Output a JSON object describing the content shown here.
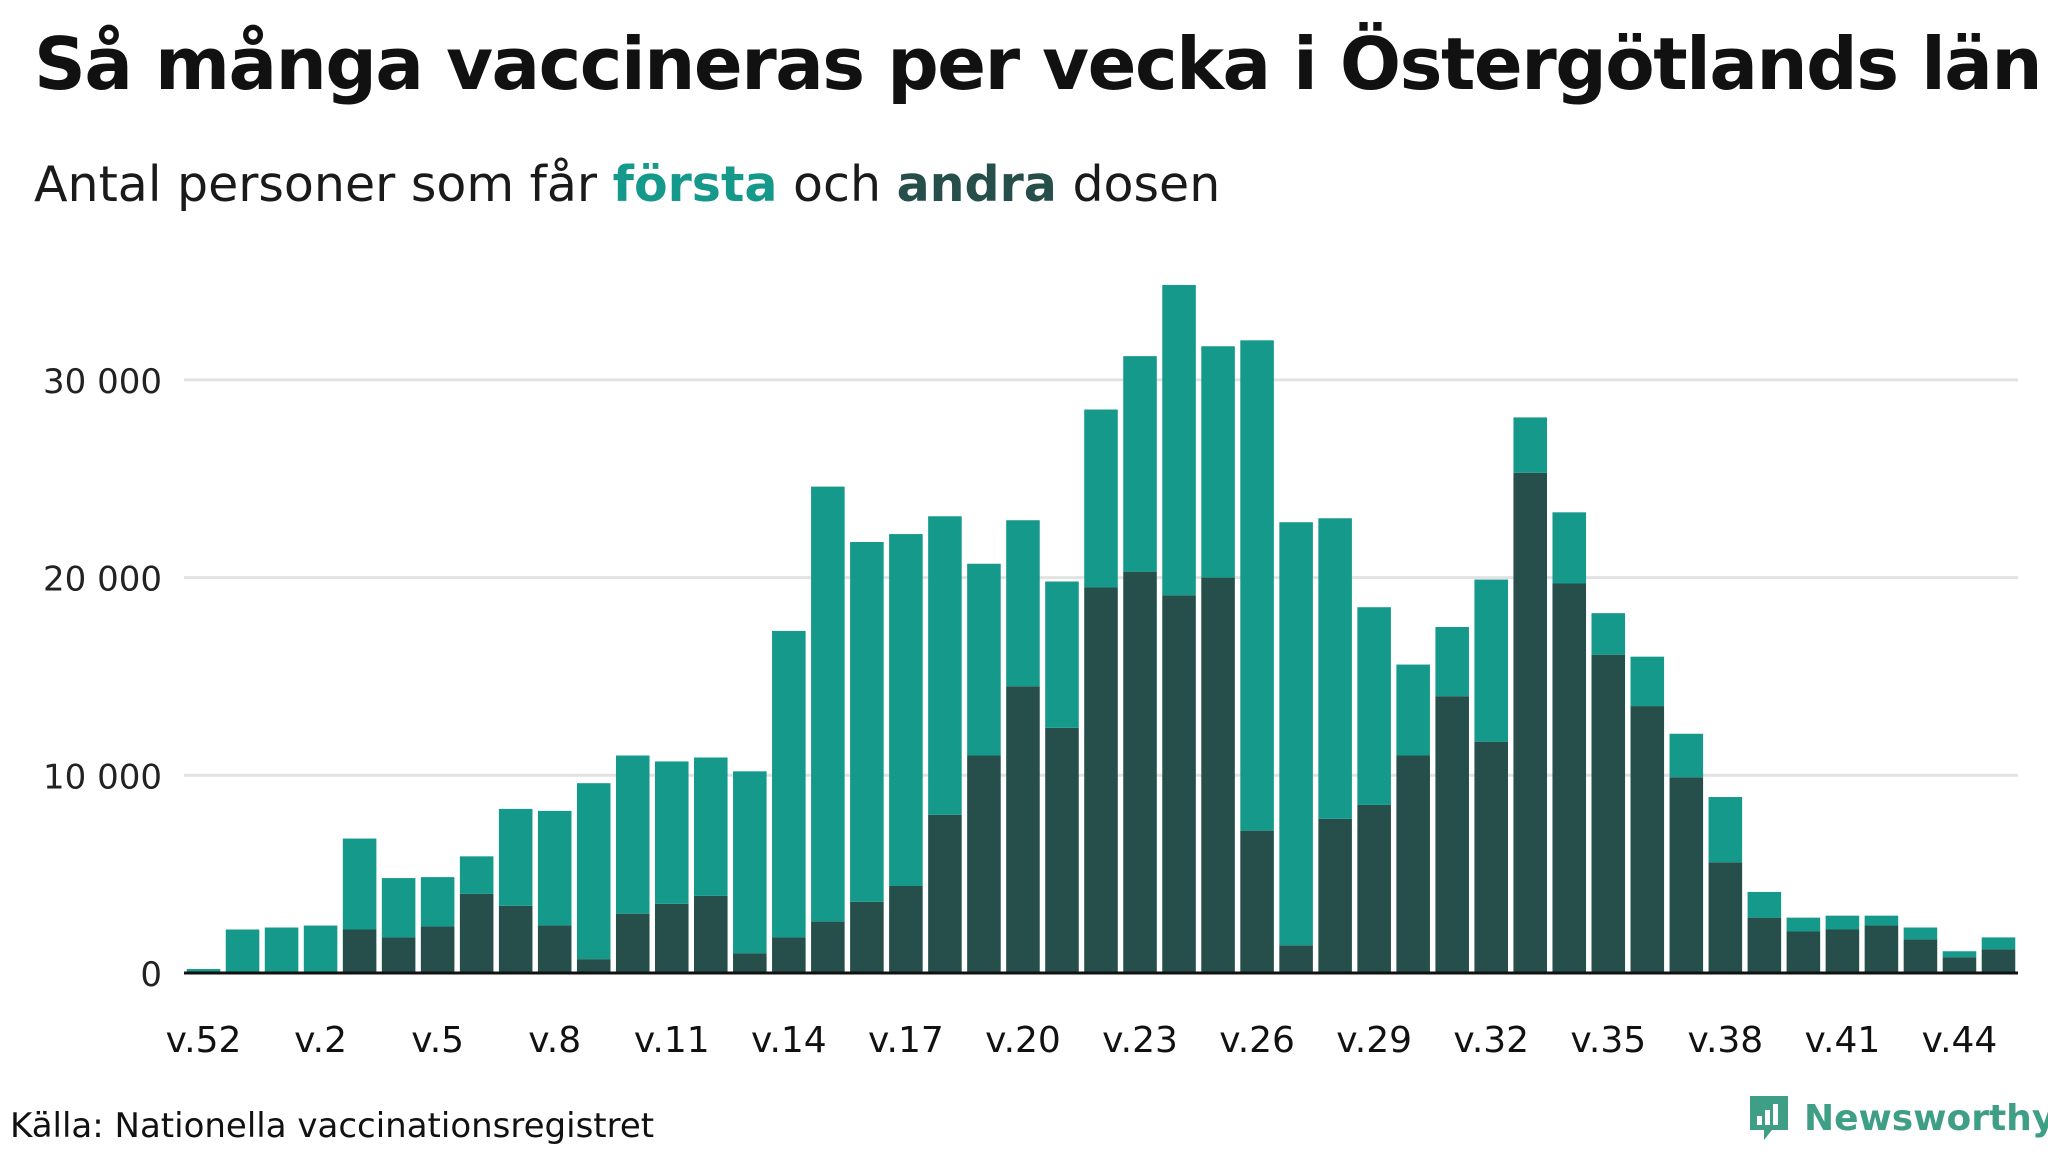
{
  "title": "Så många vaccineras per vecka i Östergötlands län",
  "subtitle": {
    "prefix": "Antal personer som får ",
    "first": "första",
    "middle": " och ",
    "second": "andra",
    "suffix": " dosen"
  },
  "source": "Källa: Nationella vaccinationsregistret",
  "brand": {
    "name": "Newsworthy",
    "icon": "newsworthy-logo-icon",
    "color": "#3f9e86"
  },
  "colors": {
    "first_dose": "#15998a",
    "second_dose": "#264e4a",
    "grid": "#e2e2e2",
    "axis": "#111111"
  },
  "chart_data": {
    "type": "bar",
    "stacked": true,
    "categories": [
      "v.52",
      "v.53",
      "v.1",
      "v.2",
      "v.3",
      "v.4",
      "v.5",
      "v.6",
      "v.7",
      "v.8",
      "v.9",
      "v.10",
      "v.11",
      "v.12",
      "v.13",
      "v.14",
      "v.15",
      "v.16",
      "v.17",
      "v.18",
      "v.19",
      "v.20",
      "v.21",
      "v.22",
      "v.23",
      "v.24",
      "v.25",
      "v.26",
      "v.27",
      "v.28",
      "v.29",
      "v.30",
      "v.31",
      "v.32",
      "v.33",
      "v.34",
      "v.35",
      "v.36",
      "v.37",
      "v.38",
      "v.39",
      "v.40",
      "v.41",
      "v.42",
      "v.43",
      "v.44",
      "v.45"
    ],
    "tick_labels": [
      "v.52",
      "v.2",
      "v.5",
      "v.8",
      "v.11",
      "v.14",
      "v.17",
      "v.20",
      "v.23",
      "v.26",
      "v.29",
      "v.32",
      "v.35",
      "v.38",
      "v.41",
      "v.44"
    ],
    "series": [
      {
        "name": "andra",
        "values": [
          0,
          0,
          0,
          0,
          2200,
          1800,
          2350,
          4000,
          3400,
          2400,
          700,
          3000,
          3500,
          3900,
          1000,
          1800,
          2600,
          3600,
          4400,
          8000,
          11000,
          14500,
          12400,
          19500,
          20300,
          19100,
          20000,
          7200,
          1400,
          7800,
          8500,
          11000,
          14000,
          11700,
          25300,
          19700,
          16100,
          13500,
          9900,
          5600,
          2800,
          2100,
          2200,
          2400,
          1700,
          800,
          1200
        ]
      },
      {
        "name": "första",
        "values": [
          200,
          2200,
          2300,
          2400,
          4600,
          3000,
          2500,
          1900,
          4900,
          5800,
          8900,
          8000,
          7200,
          7000,
          9200,
          15500,
          22000,
          18200,
          17800,
          15100,
          9700,
          8400,
          7400,
          9000,
          10900,
          15700,
          11700,
          24800,
          21400,
          15200,
          10000,
          4600,
          3500,
          8200,
          2800,
          3600,
          2100,
          2500,
          2200,
          3300,
          1300,
          700,
          700,
          500,
          600,
          300,
          600
        ]
      }
    ],
    "ylim": [
      0,
      35000
    ],
    "yticks": [
      0,
      10000,
      20000,
      30000
    ],
    "ytick_labels": [
      "0",
      "10 000",
      "20 000",
      "30 000"
    ],
    "grid": true,
    "legend": "inline-subtitle"
  }
}
